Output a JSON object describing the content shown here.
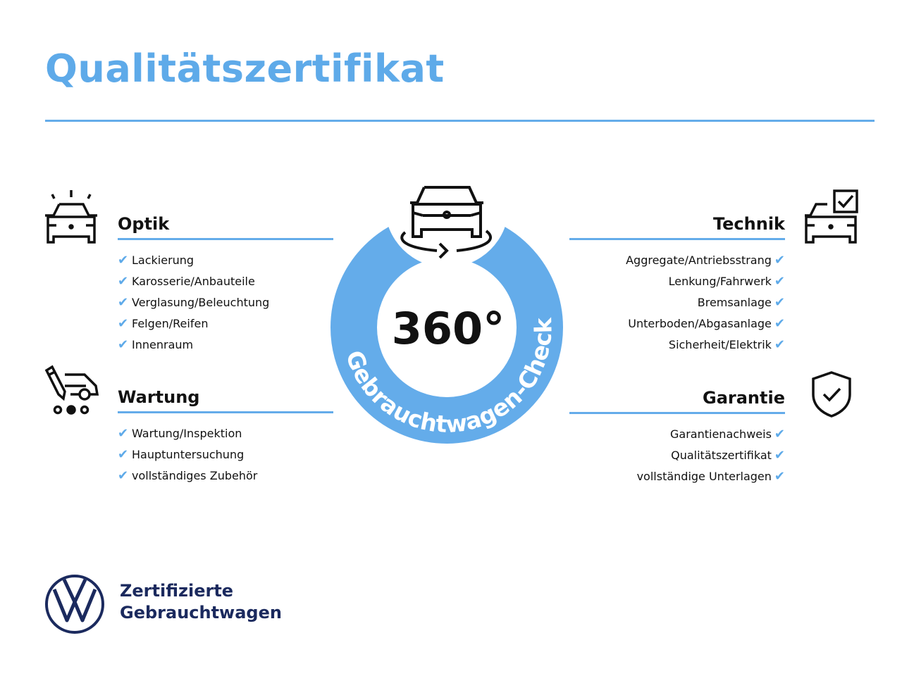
{
  "title": "Qualitätszertifikat",
  "accent_color": "#64acea",
  "check_icon": "✔",
  "center": {
    "number": "360°",
    "arc_text": "Gebrauchtwagen-Check",
    "icon": "car-rotate-icon"
  },
  "sections": {
    "optik": {
      "heading": "Optik",
      "icon": "car-lights-icon",
      "items": [
        "Lackierung",
        "Karosserie/Anbauteile",
        "Verglasung/Beleuchtung",
        "Felgen/Reifen",
        "Innenraum"
      ]
    },
    "wartung": {
      "heading": "Wartung",
      "icon": "service-car-icon",
      "items": [
        "Wartung/Inspektion",
        "Hauptuntersuchung",
        "vollständiges Zubehör"
      ]
    },
    "technik": {
      "heading": "Technik",
      "icon": "car-checklist-icon",
      "items": [
        "Aggregate/Antriebsstrang",
        "Lenkung/Fahrwerk",
        "Bremsanlage",
        "Unterboden/Abgasanlage",
        "Sicherheit/Elektrik"
      ]
    },
    "garantie": {
      "heading": "Garantie",
      "icon": "shield-check-icon",
      "items": [
        "Garantienachweis",
        "Qualitätszertifikat",
        "vollständige Unterlagen"
      ]
    }
  },
  "brand": {
    "line1": "Zertifizierte",
    "line2": "Gebrauchtwagen",
    "logo": "VW"
  }
}
